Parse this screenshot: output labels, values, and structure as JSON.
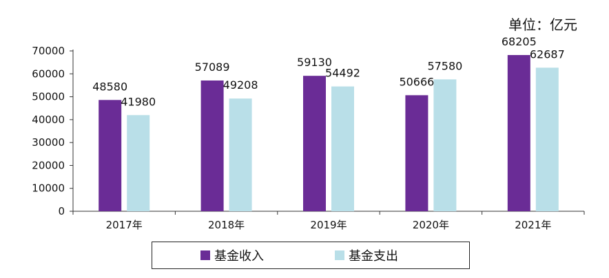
{
  "unit_label": "单位：亿元",
  "colors": {
    "income": "#6a2c96",
    "expense": "#b9dfe8"
  },
  "chart_data": {
    "type": "bar",
    "categories": [
      "2017年",
      "2018年",
      "2019年",
      "2020年",
      "2021年"
    ],
    "series": [
      {
        "name": "基金收入",
        "values": [
          48580,
          57089,
          59130,
          50666,
          68205
        ]
      },
      {
        "name": "基金支出",
        "values": [
          41980,
          49208,
          54492,
          57580,
          62687
        ]
      }
    ],
    "ylim": [
      0,
      70000
    ],
    "yticks": [
      0,
      10000,
      20000,
      30000,
      40000,
      50000,
      60000,
      70000
    ],
    "grid": false,
    "legend_position": "bottom"
  }
}
